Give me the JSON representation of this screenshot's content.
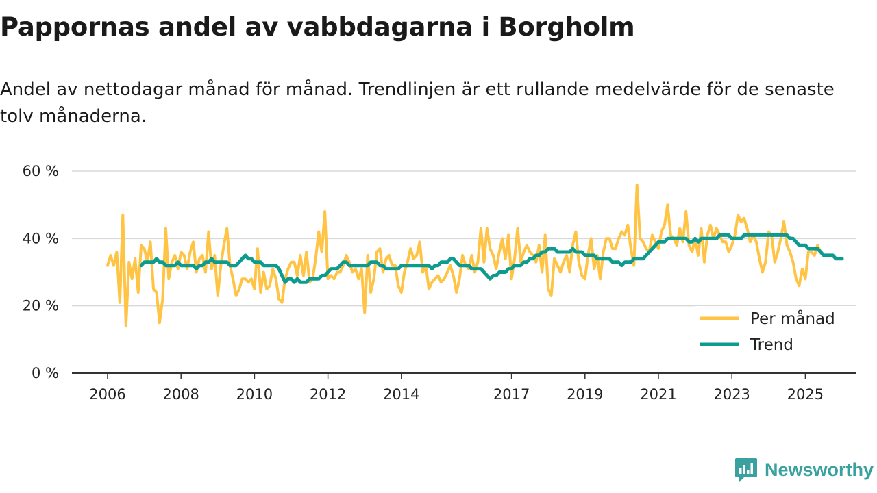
{
  "header": {
    "title": "Pappornas andel av vabbdagarna i Borgholm",
    "subtitle": "Andel av nettodagar månad för månad. Trendlinjen är ett rullande medelvärde för de senaste tolv månaderna."
  },
  "brand": {
    "name": "Newsworthy",
    "icon": "newsworthy-logo-icon",
    "color": "#3aa0a0"
  },
  "chart_data": {
    "type": "line",
    "title": "Pappornas andel av vabbdagarna i Borgholm",
    "xlabel": "",
    "ylabel": "",
    "ylim": [
      0,
      60
    ],
    "xlim": [
      2005.6,
      2026.3
    ],
    "y_ticks": [
      0,
      20,
      40,
      60
    ],
    "y_tick_labels": [
      "0 %",
      "20 %",
      "40 %",
      "60 %"
    ],
    "x_ticks": [
      2006,
      2008,
      2010,
      2012,
      2014,
      2017,
      2019,
      2021,
      2023,
      2025
    ],
    "x_tick_labels": [
      "2006",
      "2008",
      "2010",
      "2012",
      "2014",
      "2017",
      "2019",
      "2021",
      "2023",
      "2025"
    ],
    "grid": "horizontal",
    "legend_position": "bottom-right",
    "series": [
      {
        "name": "Per månad",
        "color": "#ffc445",
        "x_start": 2006.0,
        "x_step": 0.08333,
        "values": [
          32,
          35,
          32,
          36,
          21,
          47,
          14,
          33,
          28,
          34,
          24,
          38,
          37,
          33,
          39,
          25,
          24,
          15,
          22,
          43,
          28,
          33,
          35,
          31,
          36,
          35,
          31,
          36,
          39,
          30,
          34,
          35,
          30,
          42,
          31,
          35,
          23,
          32,
          38,
          43,
          32,
          28,
          23,
          25,
          28,
          28,
          27,
          28,
          25,
          37,
          24,
          30,
          25,
          26,
          31,
          28,
          22,
          21,
          28,
          31,
          33,
          33,
          29,
          35,
          29,
          36,
          27,
          28,
          34,
          42,
          36,
          48,
          28,
          29,
          28,
          30,
          30,
          32,
          35,
          33,
          30,
          31,
          28,
          31,
          18,
          35,
          24,
          28,
          36,
          37,
          30,
          34,
          35,
          32,
          32,
          26,
          24,
          30,
          33,
          37,
          34,
          35,
          39,
          30,
          32,
          25,
          27,
          28,
          29,
          27,
          28,
          30,
          32,
          29,
          24,
          28,
          35,
          32,
          31,
          35,
          30,
          33,
          43,
          33,
          43,
          37,
          35,
          31,
          36,
          40,
          34,
          41,
          28,
          34,
          43,
          33,
          36,
          38,
          36,
          35,
          33,
          38,
          30,
          41,
          25,
          23,
          34,
          32,
          30,
          33,
          35,
          30,
          38,
          42,
          33,
          29,
          28,
          35,
          40,
          31,
          35,
          28,
          36,
          40,
          40,
          37,
          37,
          40,
          42,
          41,
          44,
          37,
          32,
          56,
          40,
          39,
          37,
          36,
          41,
          39,
          37,
          42,
          44,
          50,
          41,
          40,
          38,
          43,
          39,
          48,
          38,
          36,
          40,
          35,
          43,
          33,
          41,
          44,
          40,
          43,
          41,
          39,
          39,
          36,
          38,
          41,
          47,
          45,
          46,
          43,
          39,
          41,
          39,
          34,
          30,
          33,
          42,
          41,
          33,
          36,
          40,
          45,
          38,
          36,
          33,
          28,
          26,
          31,
          28,
          36,
          36,
          35,
          38,
          36,
          35,
          35
        ]
      },
      {
        "name": "Trend",
        "color": "#0d9b8f",
        "x_start": 2006.917,
        "x_step": 0.08333,
        "values": [
          32,
          33,
          33,
          33,
          33,
          34,
          33,
          33,
          32,
          32,
          32,
          32,
          33,
          32,
          32,
          32,
          32,
          32,
          31,
          32,
          32,
          33,
          33,
          34,
          33,
          33,
          33,
          33,
          33,
          32,
          32,
          32,
          33,
          34,
          35,
          34,
          34,
          33,
          33,
          33,
          32,
          32,
          32,
          32,
          32,
          31,
          29,
          27,
          28,
          28,
          27,
          28,
          27,
          27,
          27,
          28,
          28,
          28,
          28,
          29,
          29,
          30,
          31,
          31,
          31,
          32,
          33,
          33,
          32,
          32,
          32,
          32,
          32,
          32,
          32,
          33,
          33,
          33,
          32,
          32,
          31,
          31,
          31,
          31,
          31,
          32,
          32,
          32,
          32,
          32,
          32,
          32,
          32,
          32,
          32,
          31,
          32,
          32,
          33,
          33,
          33,
          34,
          34,
          33,
          32,
          32,
          32,
          32,
          31,
          31,
          31,
          31,
          30,
          29,
          28,
          29,
          29,
          30,
          30,
          30,
          31,
          31,
          32,
          32,
          32,
          33,
          33,
          34,
          34,
          35,
          35,
          36,
          36,
          37,
          37,
          37,
          36,
          36,
          36,
          36,
          36,
          37,
          36,
          36,
          36,
          35,
          35,
          35,
          35,
          34,
          34,
          34,
          34,
          34,
          33,
          33,
          33,
          32,
          33,
          33,
          33,
          34,
          34,
          34,
          34,
          35,
          36,
          37,
          38,
          39,
          39,
          39,
          40,
          40,
          40,
          40,
          40,
          40,
          40,
          39,
          39,
          40,
          39,
          40,
          40,
          40,
          40,
          40,
          40,
          41,
          41,
          41,
          41,
          40,
          40,
          40,
          40,
          41,
          41,
          41,
          41,
          41,
          41,
          41,
          41,
          41,
          41,
          41,
          41,
          41,
          41,
          41,
          40,
          40,
          39,
          38,
          38,
          38,
          37,
          37,
          37,
          37,
          36,
          35,
          35,
          35,
          35,
          34,
          34,
          34
        ]
      }
    ]
  }
}
